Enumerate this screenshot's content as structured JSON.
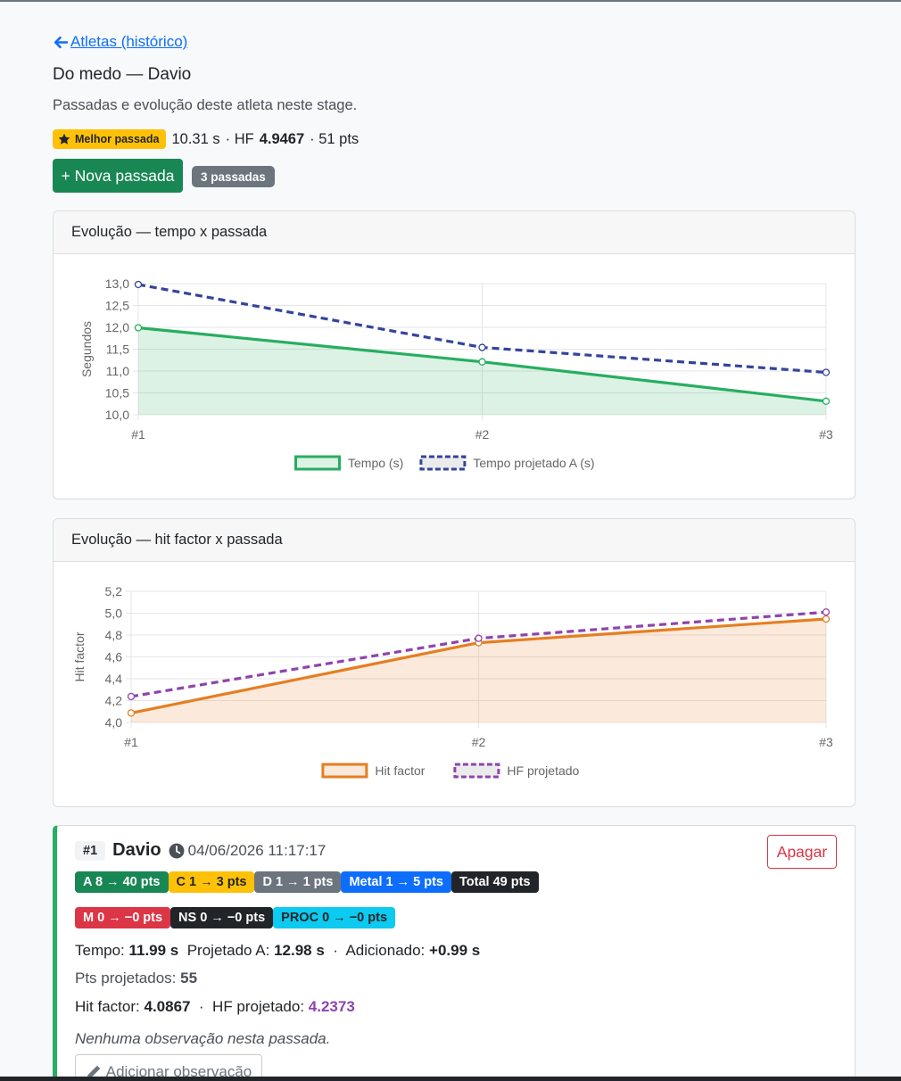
{
  "nav": {
    "back_label": "Atletas (histórico)"
  },
  "header": {
    "title": "Do medo — Davio",
    "subtitle": "Passadas e evolução deste atleta neste stage."
  },
  "best": {
    "badge_label": "Melhor passada",
    "time": "10.31 s",
    "sep1": "· HF",
    "hf": "4.9467",
    "pts": "· 51 pts"
  },
  "actions": {
    "new_pass_label": "+ Nova passada",
    "count_label": "3 passadas"
  },
  "chart_data": [
    {
      "type": "line",
      "title": "Evolução — tempo x passada",
      "xlabel": "",
      "ylabel": "Segundos",
      "categories": [
        "#1",
        "#2",
        "#3"
      ],
      "ylim": [
        10.0,
        13.0
      ],
      "yticks": [
        "13,0",
        "12,5",
        "12,0",
        "11,5",
        "11,0",
        "10,5",
        "10,0"
      ],
      "series": [
        {
          "name": "Tempo (s)",
          "values": [
            11.99,
            11.21,
            10.31
          ],
          "color": "#27ae60",
          "style": "solid",
          "fill": true
        },
        {
          "name": "Tempo projetado A (s)",
          "values": [
            12.98,
            11.54,
            10.97
          ],
          "color": "#34449c",
          "style": "dashed",
          "fill": false
        }
      ],
      "grid": true,
      "legend": "bottom"
    },
    {
      "type": "line",
      "title": "Evolução — hit factor x passada",
      "xlabel": "",
      "ylabel": "Hit factor",
      "categories": [
        "#1",
        "#2",
        "#3"
      ],
      "ylim": [
        4.0,
        5.2
      ],
      "yticks": [
        "5,2",
        "5,0",
        "4,8",
        "4,6",
        "4,4",
        "4,2",
        "4,0"
      ],
      "series": [
        {
          "name": "Hit factor",
          "values": [
            4.0867,
            4.73,
            4.9467
          ],
          "color": "#e67e22",
          "style": "solid",
          "fill": true
        },
        {
          "name": "HF projetado",
          "values": [
            4.2373,
            4.77,
            5.01
          ],
          "color": "#8e44ad",
          "style": "dashed",
          "fill": false
        }
      ],
      "grid": true,
      "legend": "bottom"
    }
  ],
  "entry": {
    "number": "#1",
    "athlete": "Davio",
    "datetime": "04/06/2026 11:17:17",
    "delete_label": "Apagar",
    "pills_row1": [
      {
        "label": "A 8 → 40 pts",
        "bg": "#198754",
        "fg": "#ffffff"
      },
      {
        "label": "C 1 → 3 pts",
        "bg": "#ffc107",
        "fg": "#212529"
      },
      {
        "label": "D 1 → 1 pts",
        "bg": "#6c757d",
        "fg": "#ffffff"
      },
      {
        "label": "Metal 1 → 5 pts",
        "bg": "#0d6efd",
        "fg": "#ffffff"
      },
      {
        "label": "Total 49 pts",
        "bg": "#212529",
        "fg": "#ffffff"
      }
    ],
    "pills_row2": [
      {
        "label": "M 0 → −0 pts",
        "bg": "#dc3545",
        "fg": "#ffffff"
      },
      {
        "label": "NS 0 → −0 pts",
        "bg": "#212529",
        "fg": "#ffffff"
      },
      {
        "label": "PROC 0 → −0 pts",
        "bg": "#0dcaf0",
        "fg": "#212529"
      }
    ],
    "time_label": "Tempo:",
    "time_value": "11.99 s",
    "proj_label": "Projetado A:",
    "proj_value": "12.98 s",
    "added_label": "Adicionado:",
    "added_value": "+0.99 s",
    "pts_proj_label": "Pts projetados:",
    "pts_proj_value": "55",
    "hf_label": "Hit factor:",
    "hf_value": "4.0867",
    "hf_proj_label": "HF projetado:",
    "hf_proj_value": "4.2373",
    "obs_text": "Nenhuma observação nesta passada.",
    "add_obs_label": "Adicionar observação"
  }
}
